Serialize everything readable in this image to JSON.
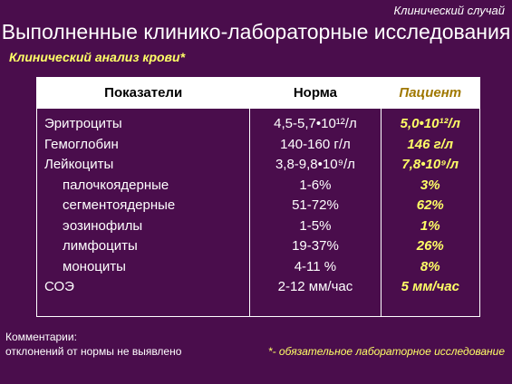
{
  "header": {
    "tag": "Клинический случай",
    "title": "Выполненные клинико-лабораторные исследования",
    "subtitle": "Клинический анализ крови*"
  },
  "table": {
    "columns": [
      "Показатели",
      "Норма",
      "Пациент"
    ],
    "rows": [
      [
        "Эритроциты",
        "4,5-5,7•10¹²/л",
        "5,0•10¹²/л"
      ],
      [
        "Гемоглобин",
        "140-160 г/л",
        "146 г/л"
      ],
      [
        "Лейкоциты",
        "3,8-9,8•10⁹/л",
        "7,8•10⁹/л"
      ],
      [
        "палочкоядерные",
        "1-6%",
        "3%"
      ],
      [
        "сегментоядерные",
        "51-72%",
        "62%"
      ],
      [
        "эозинофилы",
        "1-5%",
        "1%"
      ],
      [
        "лимфоциты",
        "19-37%",
        "26%"
      ],
      [
        "моноциты",
        "4-11 %",
        "8%"
      ],
      [
        "СОЭ",
        "2-12 мм/час",
        "5 мм/час"
      ]
    ]
  },
  "footer": {
    "comment_title": "Комментарии:",
    "comment": "отклонений от нормы не выявлено",
    "note": "*- обязательное лабораторное исследование"
  }
}
